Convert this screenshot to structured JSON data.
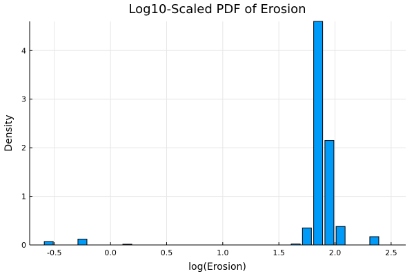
{
  "chart_data": {
    "type": "bar",
    "title": "Log10-Scaled PDF of Erosion",
    "xlabel": "log(Erosion)",
    "ylabel": "Density",
    "xlim": [
      -0.72,
      2.63
    ],
    "ylim": [
      0,
      4.6
    ],
    "xticks": [
      -0.5,
      0.0,
      0.5,
      1.0,
      1.5,
      2.0,
      2.5
    ],
    "xtick_labels": [
      "-0.5",
      "0.0",
      "0.5",
      "1.0",
      "1.5",
      "2.0",
      "2.5"
    ],
    "yticks": [
      0,
      1,
      2,
      3,
      4
    ],
    "ytick_labels": [
      "0",
      "1",
      "2",
      "3",
      "4"
    ],
    "bar_width": 0.1,
    "bar_color": "#009af9",
    "grid": true,
    "legend": "none",
    "bins": [
      {
        "x": -0.55,
        "value": 0.07
      },
      {
        "x": -0.45,
        "value": 0.0
      },
      {
        "x": -0.35,
        "value": 0.0
      },
      {
        "x": -0.25,
        "value": 0.12
      },
      {
        "x": -0.15,
        "value": 0.0
      },
      {
        "x": -0.05,
        "value": 0.0
      },
      {
        "x": 0.05,
        "value": 0.0
      },
      {
        "x": 0.15,
        "value": 0.015
      },
      {
        "x": 0.25,
        "value": 0.0
      },
      {
        "x": 0.35,
        "value": 0.0
      },
      {
        "x": 0.45,
        "value": 0.0
      },
      {
        "x": 0.55,
        "value": 0.0
      },
      {
        "x": 0.65,
        "value": 0.0
      },
      {
        "x": 0.75,
        "value": 0.0
      },
      {
        "x": 0.85,
        "value": 0.0
      },
      {
        "x": 0.95,
        "value": 0.0
      },
      {
        "x": 1.05,
        "value": 0.0
      },
      {
        "x": 1.15,
        "value": 0.0
      },
      {
        "x": 1.25,
        "value": 0.0
      },
      {
        "x": 1.35,
        "value": 0.0
      },
      {
        "x": 1.45,
        "value": 0.0
      },
      {
        "x": 1.55,
        "value": 0.0
      },
      {
        "x": 1.65,
        "value": 0.02
      },
      {
        "x": 1.75,
        "value": 0.35
      },
      {
        "x": 1.85,
        "value": 4.6
      },
      {
        "x": 1.95,
        "value": 2.15
      },
      {
        "x": 2.05,
        "value": 0.38
      },
      {
        "x": 2.15,
        "value": 0.0
      },
      {
        "x": 2.25,
        "value": 0.0
      },
      {
        "x": 2.35,
        "value": 0.17
      }
    ]
  }
}
